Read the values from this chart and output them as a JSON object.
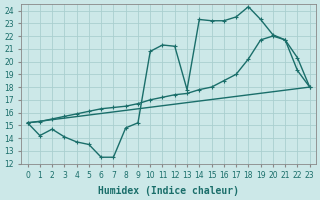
{
  "xlabel": "Humidex (Indice chaleur)",
  "bg_color": "#cce8e8",
  "line_color": "#1a6e6a",
  "grid_color": "#aacfcf",
  "xlim": [
    -0.5,
    23.5
  ],
  "ylim": [
    12,
    24.5
  ],
  "xticks": [
    0,
    1,
    2,
    3,
    4,
    5,
    6,
    7,
    8,
    9,
    10,
    11,
    12,
    13,
    14,
    15,
    16,
    17,
    18,
    19,
    20,
    21,
    22,
    23
  ],
  "yticks": [
    12,
    13,
    14,
    15,
    16,
    17,
    18,
    19,
    20,
    21,
    22,
    23,
    24
  ],
  "line1_x": [
    0,
    1,
    2,
    3,
    4,
    5,
    6,
    7,
    8,
    9,
    10,
    11,
    12,
    13,
    14,
    15,
    16,
    17,
    18,
    19,
    20,
    21,
    22,
    23
  ],
  "line1_y": [
    15.2,
    14.2,
    14.7,
    14.1,
    13.7,
    13.5,
    12.5,
    12.5,
    14.8,
    15.2,
    20.8,
    21.3,
    21.2,
    17.8,
    23.3,
    23.2,
    23.2,
    23.5,
    24.3,
    23.3,
    22.1,
    21.7,
    19.3,
    18.0
  ],
  "line2_x": [
    0,
    1,
    2,
    3,
    4,
    5,
    6,
    7,
    8,
    9,
    10,
    11,
    12,
    13,
    14,
    15,
    16,
    17,
    18,
    19,
    20,
    21,
    22,
    23
  ],
  "line2_y": [
    15.2,
    15.3,
    15.5,
    15.7,
    15.9,
    16.1,
    16.3,
    16.4,
    16.5,
    16.7,
    17.0,
    17.2,
    17.4,
    17.5,
    17.8,
    18.0,
    18.5,
    19.0,
    20.2,
    21.7,
    22.0,
    21.7,
    20.3,
    18.0
  ],
  "line3_x": [
    0,
    23
  ],
  "line3_y": [
    15.2,
    18.0
  ],
  "marker_size": 2.5,
  "linewidth": 1.0,
  "font_size": 7
}
